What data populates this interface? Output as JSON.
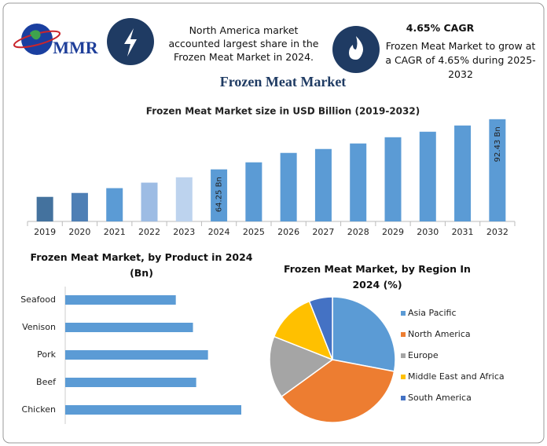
{
  "header": {
    "logo": "MMR",
    "highlight": "North America market accounted largest share in the Frozen Meat Market in 2024.",
    "cagr_title": "4.65% CAGR",
    "cagr_text": "Frozen Meat Market to grow at a CAGR of 4.65% during 2025-2032",
    "title": "Frozen Meat Market"
  },
  "chart_data": [
    {
      "type": "bar",
      "title": "Frozen Meat Market size in USD Billion (2019-2032)",
      "categories": [
        "2019",
        "2020",
        "2021",
        "2022",
        "2023",
        "2024",
        "2025",
        "2026",
        "2027",
        "2028",
        "2029",
        "2030",
        "2031",
        "2032"
      ],
      "values": [
        48.8,
        51.0,
        53.7,
        56.8,
        59.8,
        64.25,
        68.2,
        73.5,
        75.7,
        78.8,
        82.3,
        85.4,
        88.9,
        92.43
      ],
      "value_labels": [
        null,
        null,
        null,
        null,
        null,
        "64.25 Bn",
        null,
        null,
        null,
        null,
        null,
        null,
        null,
        "92.43 Bn"
      ],
      "colors": [
        "#44729e",
        "#4e7fb5",
        "#5b9bd5",
        "#9dbce4",
        "#bdd3ee",
        "#5b9bd5",
        "#5b9bd5",
        "#5b9bd5",
        "#5b9bd5",
        "#5b9bd5",
        "#5b9bd5",
        "#5b9bd5",
        "#5b9bd5",
        "#5b9bd5"
      ],
      "ylim": [
        35,
        95
      ]
    },
    {
      "type": "barh",
      "title": "Frozen Meat Market, by Product in 2024 (Bn)",
      "categories": [
        "Seafood",
        "Venison",
        "Pork",
        "Beef",
        "Chicken"
      ],
      "values": [
        10.3,
        11.9,
        13.3,
        12.2,
        16.4
      ],
      "color": "#5b9bd5"
    },
    {
      "type": "pie",
      "title": "Frozen Meat Market, by Region In 2024 (%)",
      "categories": [
        "Asia Pacific",
        "North America",
        "Europe",
        "Middle East and Africa",
        "South America"
      ],
      "values": [
        28,
        37,
        16,
        13,
        6
      ],
      "colors": [
        "#5b9bd5",
        "#ed7d31",
        "#a5a5a5",
        "#ffc000",
        "#4472c4"
      ],
      "legend": "right"
    }
  ]
}
